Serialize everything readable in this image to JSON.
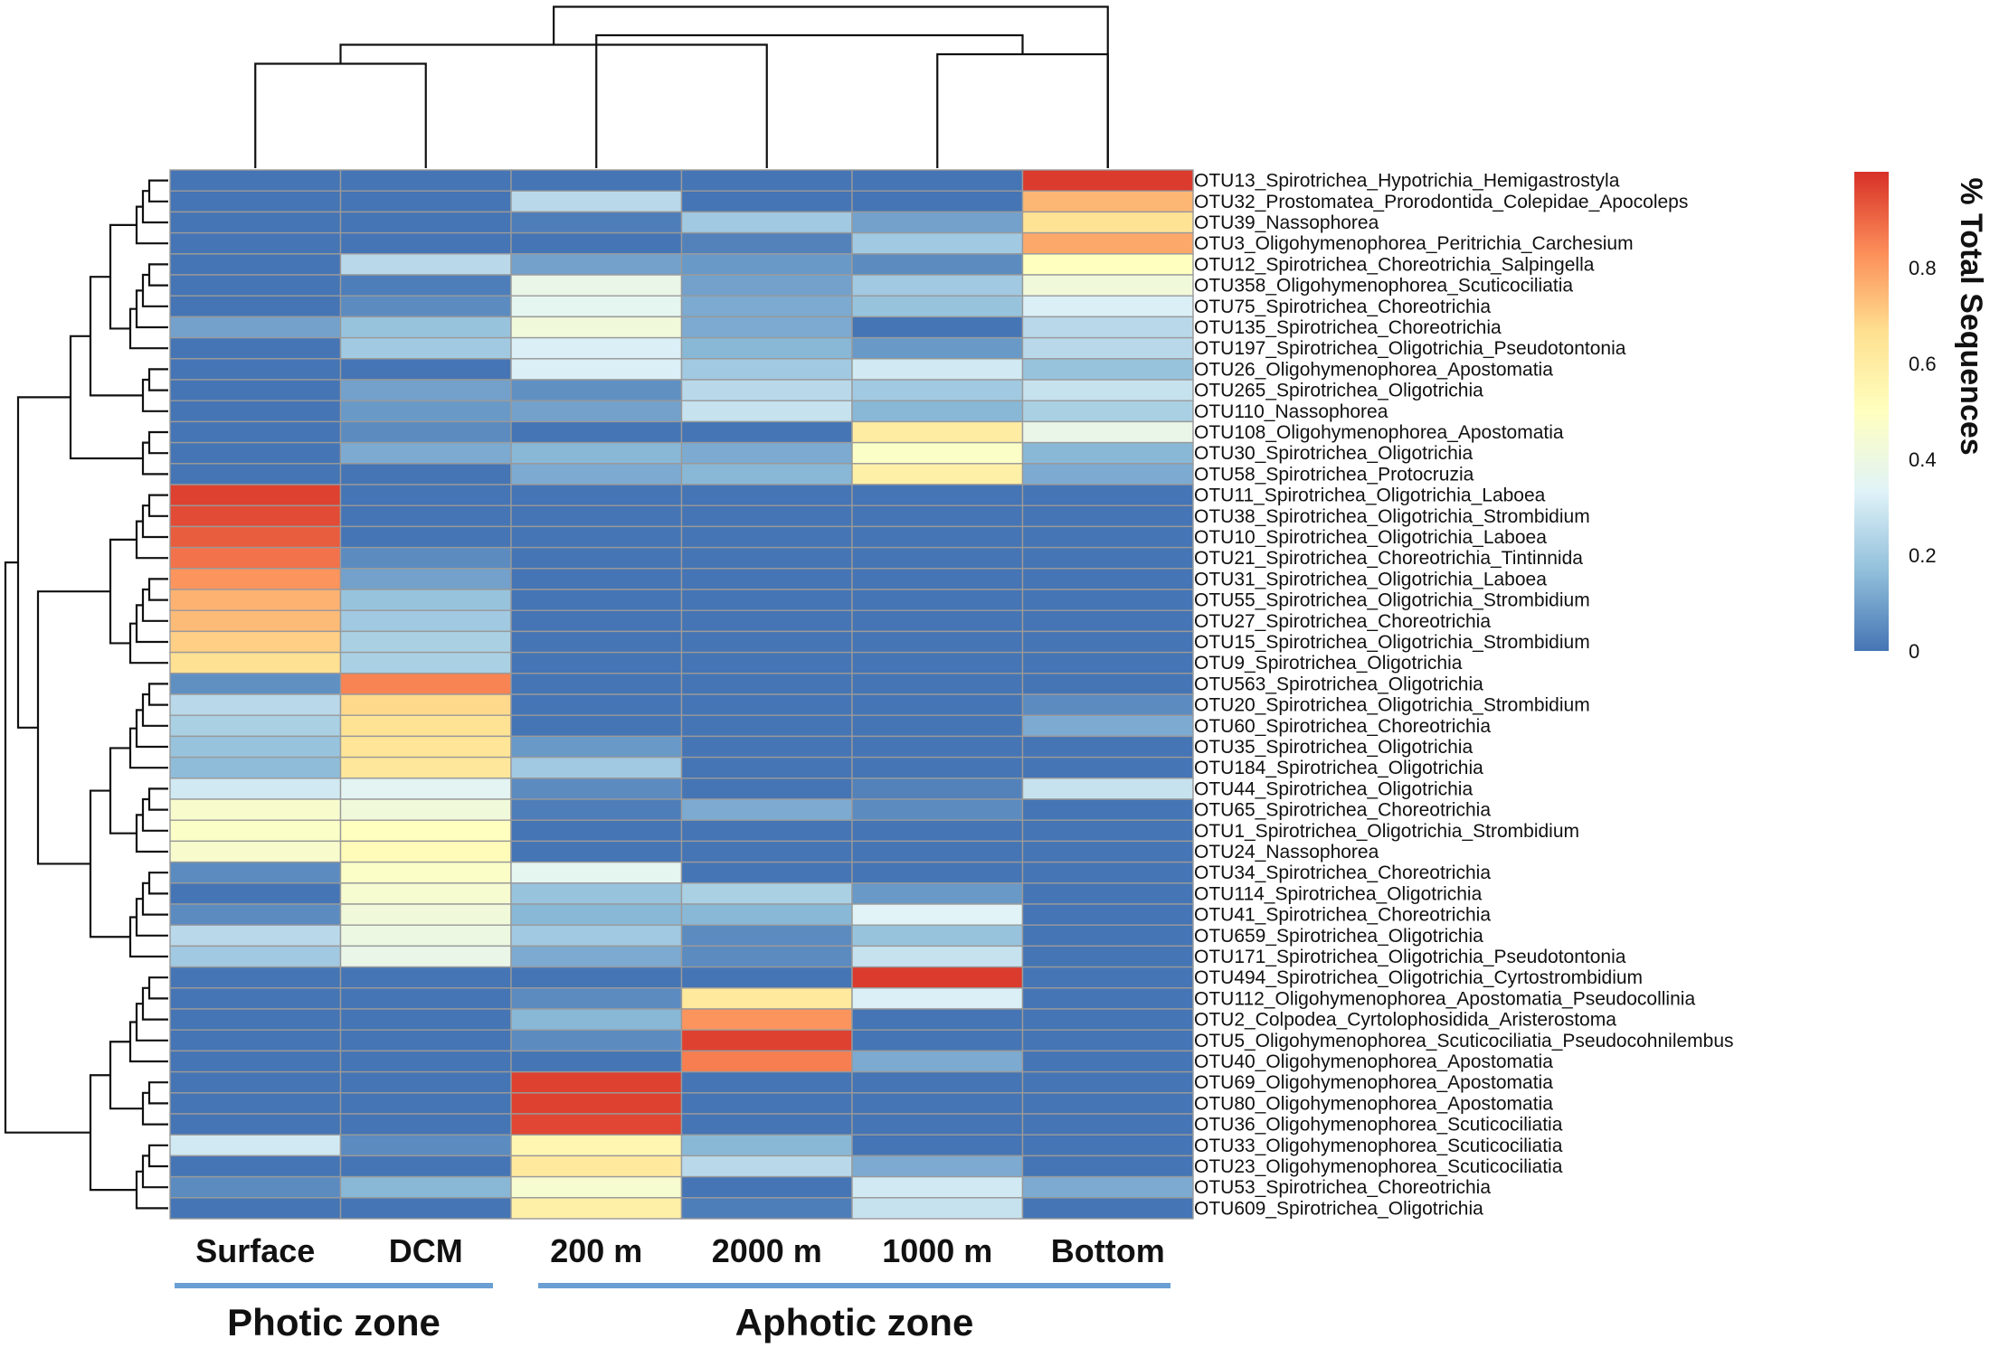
{
  "chart_data": {
    "type": "heatmap",
    "columns": [
      "Surface",
      "DCM",
      "200 m",
      "2000 m",
      "1000 m",
      "Bottom"
    ],
    "rows": [
      "OTU13_Spirotrichea_Hypotrichia_Hemigastrostyla",
      "OTU32_Prostomatea_Prorodontida_Colepidae_Apocoleps",
      "OTU39_Nassophorea",
      "OTU3_Oligohymenophorea_Peritrichia_Carchesium",
      "OTU12_Spirotrichea_Choreotrichia_Salpingella",
      "OTU358_Oligohymenophorea_Scuticociliatia",
      "OTU75_Spirotrichea_Choreotrichia",
      "OTU135_Spirotrichea_Choreotrichia",
      "OTU197_Spirotrichea_Oligotrichia_Pseudotontonia",
      "OTU26_Oligohymenophorea_Apostomatia",
      "OTU265_Spirotrichea_Oligotrichia",
      "OTU110_Nassophorea",
      "OTU108_Oligohymenophorea_Apostomatia",
      "OTU30_Spirotrichea_Oligotrichia",
      "OTU58_Spirotrichea_Protocruzia",
      "OTU11_Spirotrichea_Oligotrichia_Laboea",
      "OTU38_Spirotrichea_Oligotrichia_Strombidium",
      "OTU10_Spirotrichea_Oligotrichia_Laboea",
      "OTU21_Spirotrichea_Choreotrichia_Tintinnida",
      "OTU31_Spirotrichea_Oligotrichia_Laboea",
      "OTU55_Spirotrichea_Oligotrichia_Strombidium",
      "OTU27_Spirotrichea_Choreotrichia",
      "OTU15_Spirotrichea_Oligotrichia_Strombidium",
      "OTU9_Spirotrichea_Oligotrichia",
      "OTU563_Spirotrichea_Oligotrichia",
      "OTU20_Spirotrichea_Oligotrichia_Strombidium",
      "OTU60_Spirotrichea_Choreotrichia",
      "OTU35_Spirotrichea_Oligotrichia",
      "OTU184_Spirotrichea_Oligotrichia",
      "OTU44_Spirotrichea_Oligotrichia",
      "OTU65_Spirotrichea_Choreotrichia",
      "OTU1_Spirotrichea_Oligotrichia_Strombidium",
      "OTU24_Nassophorea",
      "OTU34_Spirotrichea_Choreotrichia",
      "OTU114_Spirotrichea_Oligotrichia",
      "OTU41_Spirotrichea_Choreotrichia",
      "OTU659_Spirotrichea_Oligotrichia",
      "OTU171_Spirotrichea_Oligotrichia_Pseudotontonia",
      "OTU494_Spirotrichea_Oligotrichia_Cyrtostrombidium",
      "OTU112_Oligohymenophorea_Apostomatia_Pseudocollinia",
      "OTU2_Colpodea_Cyrtolophosidida_Aristerostoma",
      "OTU5_Oligohymenophorea_Scuticociliatia_Pseudocohnilembus",
      "OTU40_Oligohymenophorea_Apostomatia",
      "OTU69_Oligohymenophorea_Apostomatia",
      "OTU80_Oligohymenophorea_Apostomatia",
      "OTU36_Oligohymenophorea_Scuticociliatia",
      "OTU33_Oligohymenophorea_Scuticociliatia",
      "OTU23_Oligohymenophorea_Scuticociliatia",
      "OTU53_Spirotrichea_Choreotrichia",
      "OTU609_Spirotrichea_Oligotrichia"
    ],
    "values": [
      [
        0.0,
        0.0,
        0.0,
        0.0,
        0.0,
        0.98
      ],
      [
        0.0,
        0.0,
        0.25,
        0.0,
        0.0,
        0.75
      ],
      [
        0.0,
        0.0,
        0.02,
        0.2,
        0.1,
        0.65
      ],
      [
        0.0,
        0.0,
        0.0,
        0.03,
        0.2,
        0.78
      ],
      [
        0.0,
        0.25,
        0.1,
        0.08,
        0.05,
        0.5
      ],
      [
        0.0,
        0.02,
        0.38,
        0.1,
        0.2,
        0.42
      ],
      [
        0.0,
        0.05,
        0.36,
        0.12,
        0.18,
        0.32
      ],
      [
        0.1,
        0.18,
        0.42,
        0.12,
        0.0,
        0.25
      ],
      [
        0.0,
        0.2,
        0.32,
        0.15,
        0.08,
        0.25
      ],
      [
        0.0,
        0.0,
        0.32,
        0.2,
        0.3,
        0.18
      ],
      [
        0.0,
        0.1,
        0.06,
        0.25,
        0.2,
        0.28
      ],
      [
        0.0,
        0.08,
        0.1,
        0.28,
        0.15,
        0.22
      ],
      [
        0.0,
        0.05,
        0.0,
        0.0,
        0.6,
        0.38
      ],
      [
        0.0,
        0.12,
        0.15,
        0.12,
        0.48,
        0.15
      ],
      [
        0.0,
        0.0,
        0.12,
        0.15,
        0.58,
        0.12
      ],
      [
        0.97,
        0.0,
        0.0,
        0.0,
        0.0,
        0.0
      ],
      [
        0.95,
        0.0,
        0.0,
        0.0,
        0.0,
        0.0
      ],
      [
        0.92,
        0.0,
        0.0,
        0.0,
        0.0,
        0.0
      ],
      [
        0.88,
        0.05,
        0.0,
        0.0,
        0.0,
        0.0
      ],
      [
        0.82,
        0.1,
        0.0,
        0.0,
        0.0,
        0.0
      ],
      [
        0.76,
        0.18,
        0.0,
        0.0,
        0.0,
        0.0
      ],
      [
        0.74,
        0.2,
        0.0,
        0.0,
        0.0,
        0.0
      ],
      [
        0.7,
        0.22,
        0.0,
        0.0,
        0.0,
        0.0
      ],
      [
        0.66,
        0.22,
        0.0,
        0.0,
        0.0,
        0.0
      ],
      [
        0.06,
        0.85,
        0.0,
        0.0,
        0.0,
        0.0
      ],
      [
        0.25,
        0.68,
        0.0,
        0.0,
        0.0,
        0.05
      ],
      [
        0.22,
        0.65,
        0.0,
        0.0,
        0.0,
        0.12
      ],
      [
        0.18,
        0.64,
        0.08,
        0.0,
        0.0,
        0.0
      ],
      [
        0.16,
        0.63,
        0.2,
        0.0,
        0.0,
        0.0
      ],
      [
        0.3,
        0.35,
        0.05,
        0.0,
        0.03,
        0.28
      ],
      [
        0.46,
        0.42,
        0.02,
        0.12,
        0.05,
        0.0
      ],
      [
        0.48,
        0.5,
        0.0,
        0.0,
        0.0,
        0.0
      ],
      [
        0.46,
        0.52,
        0.0,
        0.0,
        0.0,
        0.0
      ],
      [
        0.05,
        0.48,
        0.36,
        0.0,
        0.0,
        0.0
      ],
      [
        0.0,
        0.45,
        0.18,
        0.22,
        0.08,
        0.0
      ],
      [
        0.05,
        0.42,
        0.15,
        0.15,
        0.34,
        0.0
      ],
      [
        0.25,
        0.4,
        0.2,
        0.05,
        0.18,
        0.0
      ],
      [
        0.2,
        0.38,
        0.12,
        0.05,
        0.28,
        0.0
      ],
      [
        0.0,
        0.0,
        0.0,
        0.0,
        0.98,
        0.0
      ],
      [
        0.0,
        0.0,
        0.05,
        0.62,
        0.32,
        0.0
      ],
      [
        0.0,
        0.0,
        0.15,
        0.82,
        0.0,
        0.0
      ],
      [
        0.0,
        0.0,
        0.05,
        0.97,
        0.0,
        0.0
      ],
      [
        0.0,
        0.0,
        0.0,
        0.86,
        0.12,
        0.0
      ],
      [
        0.0,
        0.0,
        0.97,
        0.0,
        0.0,
        0.0
      ],
      [
        0.0,
        0.0,
        0.97,
        0.0,
        0.0,
        0.0
      ],
      [
        0.0,
        0.0,
        0.96,
        0.0,
        0.0,
        0.0
      ],
      [
        0.3,
        0.05,
        0.55,
        0.15,
        0.0,
        0.0
      ],
      [
        0.0,
        0.0,
        0.62,
        0.25,
        0.12,
        0.0
      ],
      [
        0.05,
        0.15,
        0.45,
        0.0,
        0.3,
        0.12
      ],
      [
        0.0,
        0.0,
        0.58,
        0.02,
        0.28,
        0.0
      ]
    ],
    "scale": {
      "min": 0,
      "max": 1,
      "ticks": [
        0,
        0.2,
        0.4,
        0.6,
        0.8
      ],
      "tick_labels": [
        "0",
        "0.2",
        "0.4",
        "0.6",
        "0.8"
      ],
      "colors": [
        "#4575b4",
        "#91bfdb",
        "#e0f3f8",
        "#ffffbf",
        "#fee090",
        "#fc8d59",
        "#d73027"
      ]
    },
    "legend_title": "% Total Sequences",
    "groups": [
      {
        "label": "Photic zone",
        "columns": [
          "Surface",
          "DCM"
        ]
      },
      {
        "label": "Aphotic zone",
        "columns": [
          "200 m",
          "2000 m",
          "1000 m",
          "Bottom"
        ]
      }
    ],
    "group_line_color": "#6a9fd4",
    "grid_color": "#9a9a9a",
    "column_dendrogram": {
      "leaves": [
        0,
        1,
        2,
        3,
        4,
        5
      ],
      "merges": [
        [
          0,
          1,
          0.55
        ],
        [
          4,
          5,
          0.6
        ],
        [
          3,
          6,
          0.65
        ],
        [
          2,
          7,
          0.7
        ],
        [
          5,
          8,
          0.85
        ]
      ]
    },
    "row_dendrogram_note": "hierarchical clustering of OTU rows"
  }
}
